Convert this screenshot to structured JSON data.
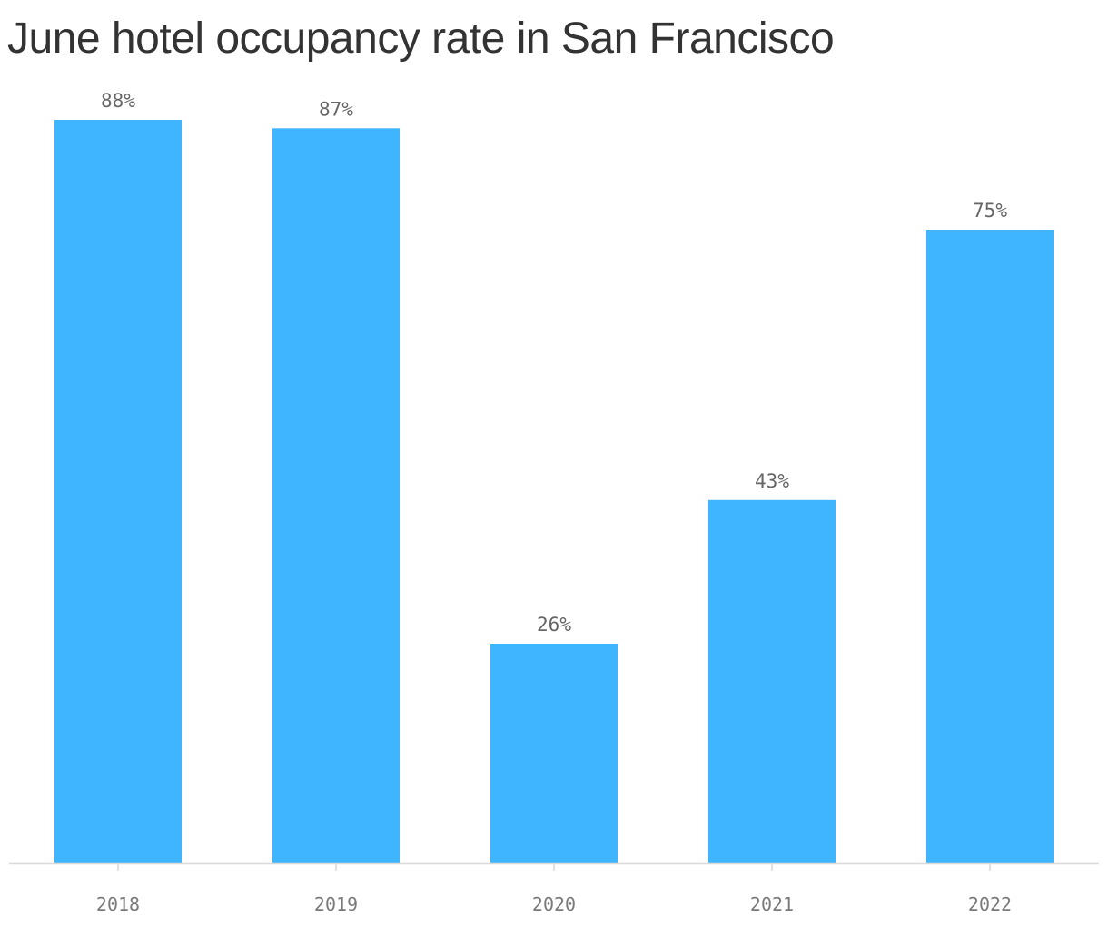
{
  "chart_data": {
    "type": "bar",
    "title": "June hotel occupancy rate in San Francisco",
    "xlabel": "",
    "ylabel": "",
    "categories": [
      "2018",
      "2019",
      "2020",
      "2021",
      "2022"
    ],
    "values": [
      88,
      87,
      26,
      43,
      75
    ],
    "value_labels": [
      "88%",
      "87%",
      "26%",
      "43%",
      "75%"
    ],
    "value_unit": "%",
    "ylim": [
      0,
      88
    ],
    "grid": false,
    "legend": "none",
    "colors": {
      "bar": "#3fb5ff",
      "axis": "#d9d9d9",
      "value_label": "#666666",
      "tick_label": "#7a7a7a",
      "title": "#333333"
    }
  }
}
